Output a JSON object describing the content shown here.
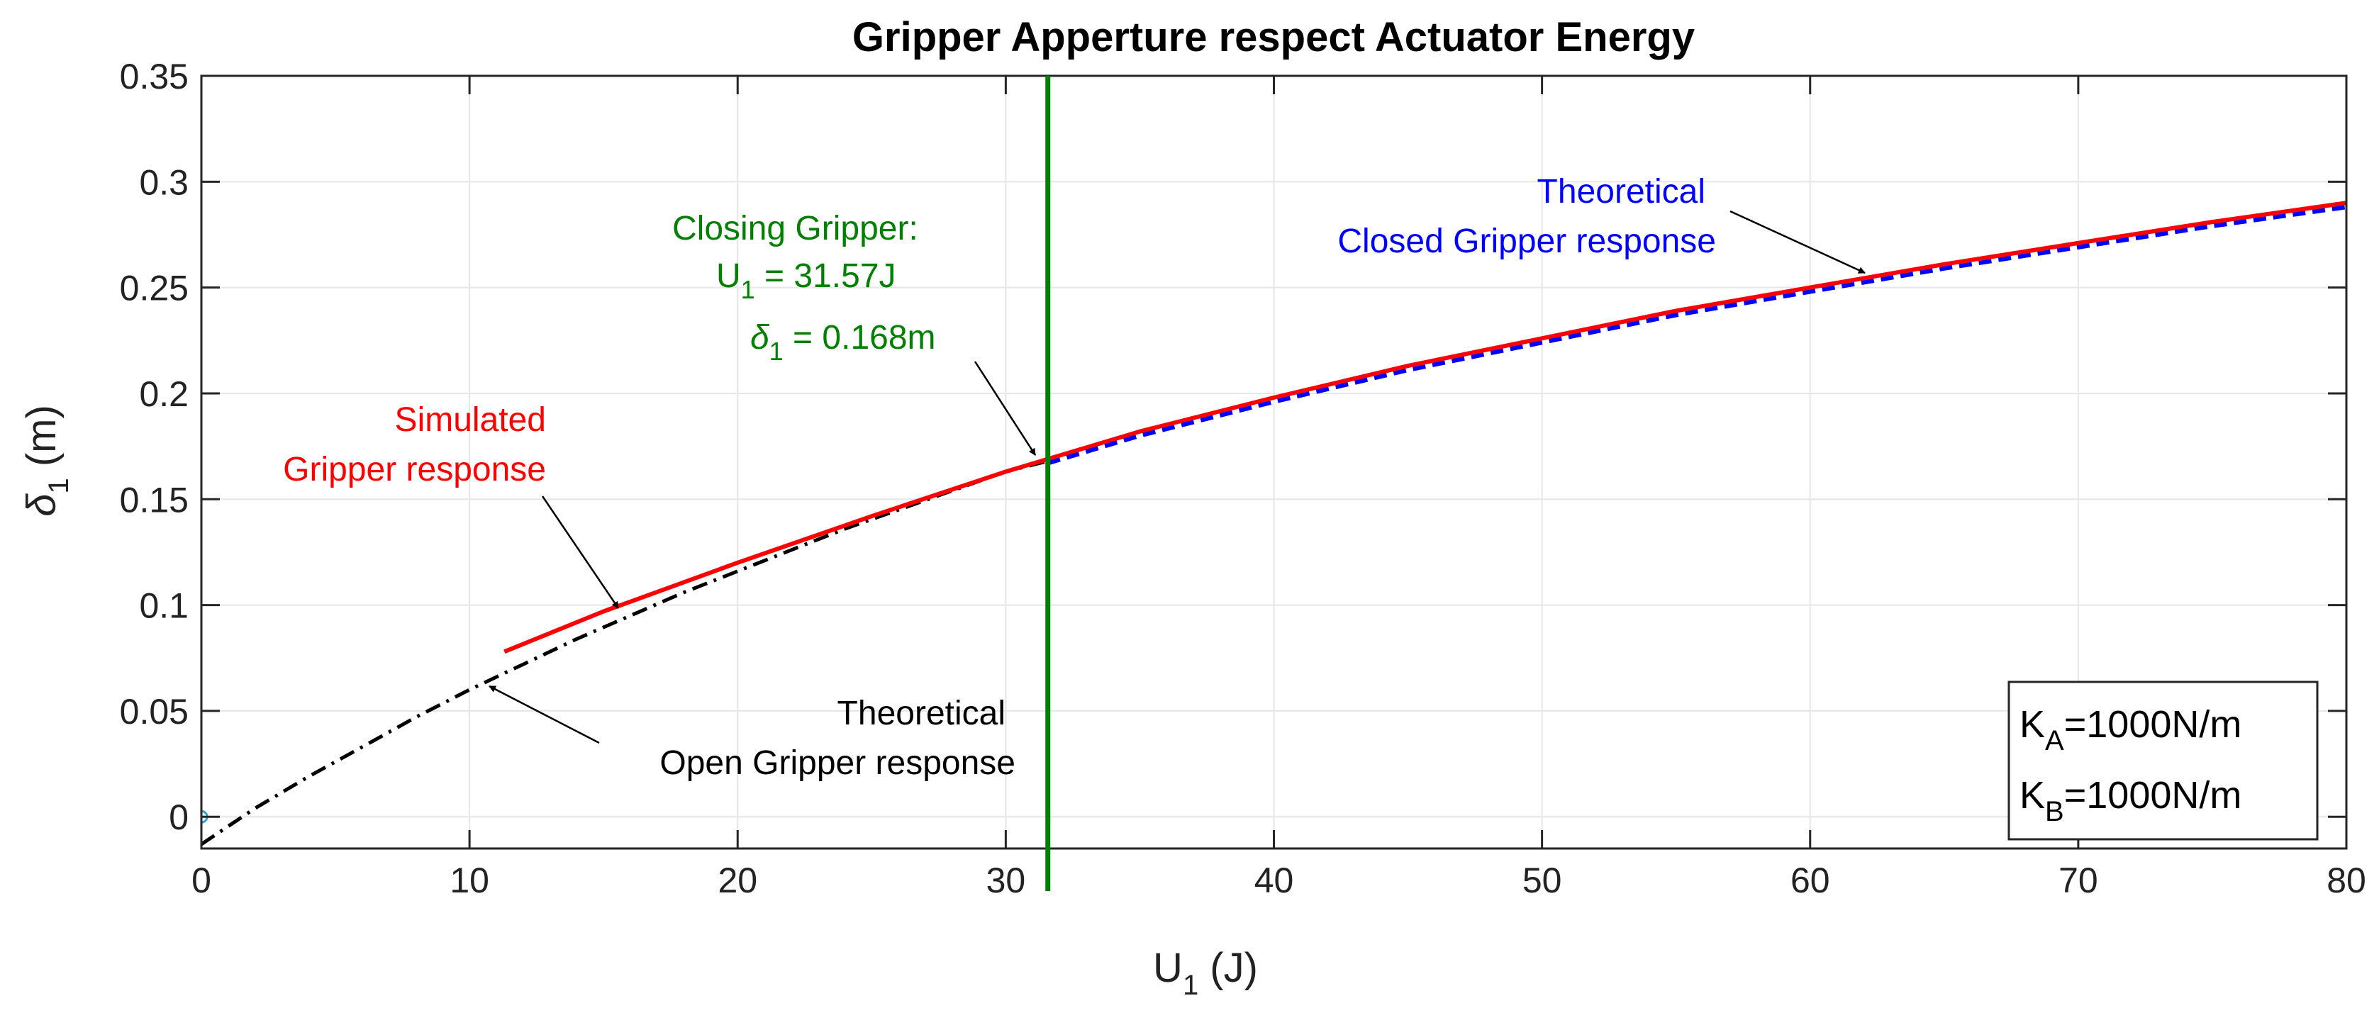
{
  "chart_data": {
    "type": "line",
    "title": "Gripper Apperture respect Actuator Energy",
    "xlabel": {
      "main": "U",
      "sub": "1",
      "unit": " (J)"
    },
    "ylabel": {
      "main": "δ",
      "sub": "1",
      "unit": "  (m)"
    },
    "xlim": [
      0,
      80
    ],
    "ylim": [
      -0.015,
      0.35
    ],
    "grid": true,
    "x_ticks": [
      0,
      10,
      20,
      30,
      40,
      50,
      60,
      70,
      80
    ],
    "x_tick_labels": [
      "0",
      "10",
      "20",
      "30",
      "40",
      "50",
      "60",
      "70",
      "80"
    ],
    "y_ticks": [
      0,
      0.05,
      0.1,
      0.15,
      0.2,
      0.25,
      0.3,
      0.35
    ],
    "y_tick_labels": [
      "0",
      "0.05",
      "0.1",
      "0.15",
      "0.2",
      "0.25",
      "0.3",
      "0.35"
    ],
    "series": [
      {
        "style": "dash-dot",
        "color": "#000000",
        "x": [
          0,
          2,
          4,
          6,
          8,
          10,
          12,
          14,
          16,
          18,
          20,
          22,
          24,
          26,
          28,
          30,
          31.57
        ],
        "y": [
          -0.013,
          0.004,
          0.019,
          0.033,
          0.047,
          0.06,
          0.072,
          0.084,
          0.095,
          0.106,
          0.116,
          0.126,
          0.136,
          0.145,
          0.154,
          0.163,
          0.168
        ]
      },
      {
        "style": "solid",
        "color": "#ff0000",
        "x": [
          11.3,
          15,
          20,
          25,
          30,
          35,
          40,
          45,
          50,
          55,
          60,
          65,
          70,
          75,
          80
        ],
        "y": [
          0.078,
          0.097,
          0.12,
          0.142,
          0.163,
          0.182,
          0.198,
          0.213,
          0.226,
          0.239,
          0.25,
          0.261,
          0.271,
          0.281,
          0.29
        ]
      },
      {
        "style": "dashed",
        "color": "#0000ff",
        "x": [
          31.57,
          35,
          40,
          45,
          50,
          55,
          60,
          65,
          70,
          75,
          80
        ],
        "y": [
          0.167,
          0.18,
          0.196,
          0.211,
          0.224,
          0.237,
          0.248,
          0.259,
          0.269,
          0.279,
          0.288
        ]
      }
    ],
    "marker": {
      "x": 0,
      "y": 0,
      "color": "#29a3d6"
    },
    "vline": {
      "x": 31.57,
      "color": "#007f00"
    },
    "annotations": {
      "simulated": {
        "line1": "Simulated",
        "line2": "Gripper response",
        "color": "#ff0000"
      },
      "open": {
        "line1": "Theoretical",
        "line2": "Open Gripper response",
        "color": "#000000"
      },
      "closed": {
        "line1": "Theoretical",
        "line2": "Closed Gripper response",
        "color": "#0000ff"
      },
      "closing": {
        "line1": "Closing Gripper:",
        "u_main": "U",
        "u_sub": "1",
        "u_val": " = 31.57J",
        "d_main": "δ",
        "d_sub": "1",
        "d_val": " = 0.168m",
        "color": "#007f00"
      }
    },
    "legend_box": {
      "ka_main": "K",
      "ka_sub": "A",
      "ka_val": "=1000N/m",
      "kb_main": "K",
      "kb_sub": "B",
      "kb_val": "=1000N/m"
    }
  }
}
